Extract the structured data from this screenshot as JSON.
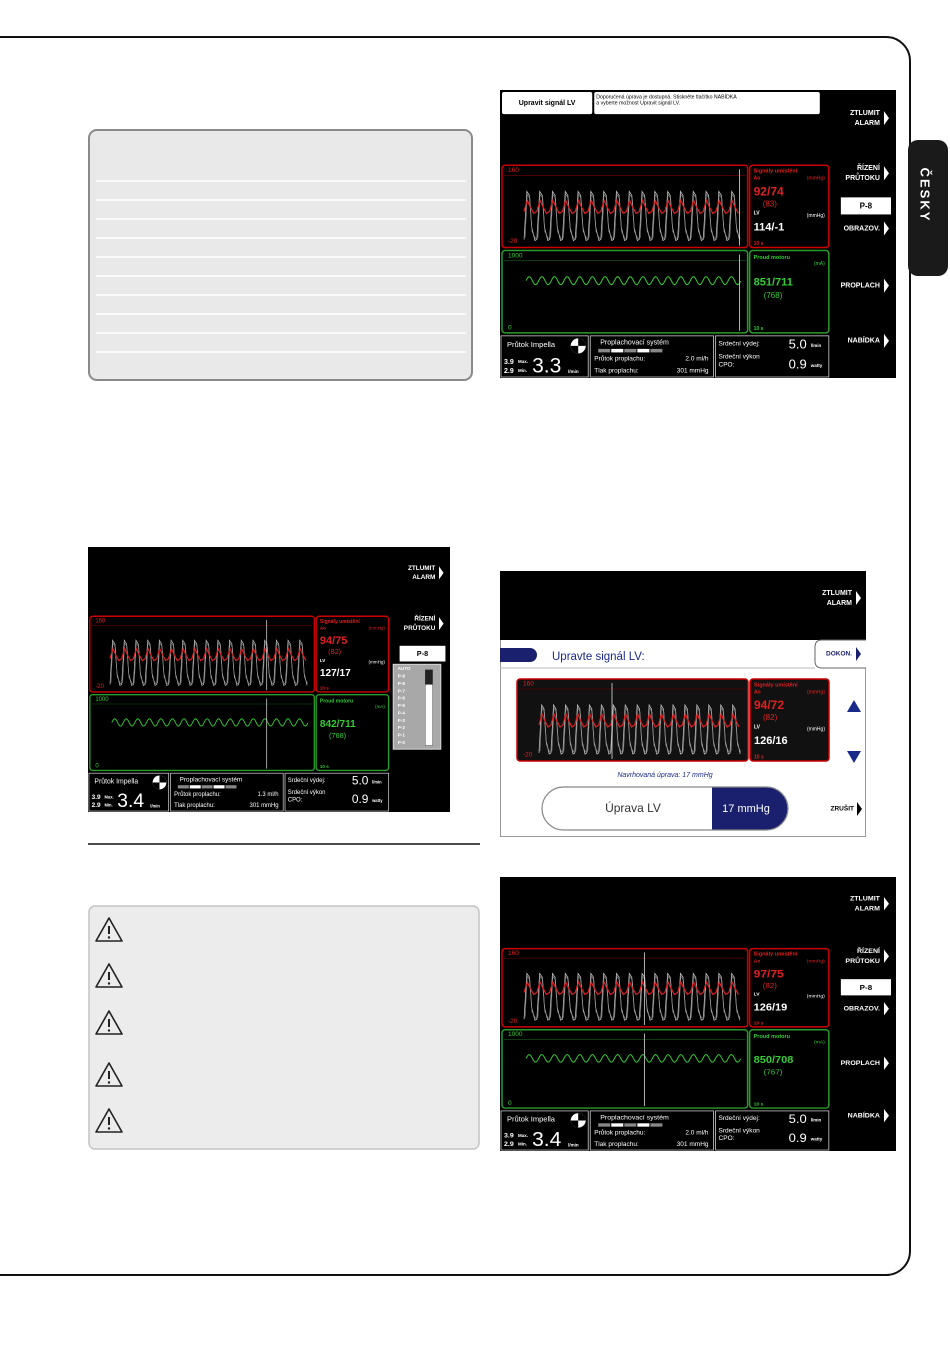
{
  "side_tab": "ČESKY",
  "screens": [
    {
      "message_tab": "Upravit signál LV",
      "message": [
        "Doporučená úprava je dostupná. Stiskněte tlačítko NABÍDKA",
        "a vyberte možnost Upravit signál LV."
      ],
      "buttons": [
        [
          "ZTLUMIT",
          "ALARM"
        ],
        [
          "ŘÍZENÍ",
          "PRŮTOKU"
        ],
        [
          "OBRAZOV."
        ],
        [
          "PROPLACH"
        ],
        [
          "NABÍDKA"
        ]
      ],
      "pump_level": "P-8",
      "pressure": {
        "y_top": "160",
        "y_bottom": "-20",
        "title": "Signály umístění",
        "ao_label": "Ao",
        "ao_unit": "(mmHg)",
        "ao_value": "92/74",
        "ao_mean": "(83)",
        "lv_label": "LV",
        "lv_unit": "(mmHg)",
        "lv_value": "114/-1",
        "time": "10 s"
      },
      "motor": {
        "y_top": "1000",
        "y_bottom": "0",
        "title": "Proud motoru",
        "unit": "(mA)",
        "value": "851/711",
        "mean": "(768)",
        "time": "10 s"
      },
      "flow": {
        "title": "Průtok Impella",
        "max": "3.9",
        "max_label": "Max.",
        "min": "2.9",
        "min_label": "Min.",
        "value": "3.3",
        "unit": "l/min"
      },
      "purge": {
        "title": "Proplachovací systém",
        "flow_label": "Průtok proplachu:",
        "flow_value": "2.0 ml/h",
        "pressure_label": "Tlak proplachu:",
        "pressure_value": "301 mmHg"
      },
      "output": {
        "co_label": "Srdeční výdej:",
        "co_value": "5.0",
        "co_unit": "l/min",
        "cpo_label": [
          "Srdeční výkon",
          "CPO:"
        ],
        "cpo_value": "0.9",
        "cpo_unit": "watty"
      }
    },
    {
      "buttons": [
        [
          "ZTLUMIT",
          "ALARM"
        ],
        [
          "ŘÍZENÍ",
          "PRŮTOKU"
        ]
      ],
      "pump_level": "P-8",
      "levels": [
        "AUTO",
        "P-9",
        "P-8",
        "P-7",
        "P-6",
        "P-5",
        "P-4",
        "P-3",
        "P-2",
        "P-1",
        "P-0"
      ],
      "pressure": {
        "y_top": "160",
        "y_bottom": "-20",
        "title": "Signály umístění",
        "ao_label": "Ao",
        "ao_unit": "(mmHg)",
        "ao_value": "94/75",
        "ao_mean": "(82)",
        "lv_label": "LV",
        "lv_unit": "(mmHg)",
        "lv_value": "127/17",
        "time": "10 s"
      },
      "motor": {
        "y_top": "1000",
        "y_bottom": "0",
        "title": "Proud motoru",
        "unit": "(mA)",
        "value": "842/711",
        "mean": "(768)",
        "time": "10 s"
      },
      "flow": {
        "title": "Průtok Impella",
        "max": "3.9",
        "max_label": "Max.",
        "min": "2.9",
        "min_label": "Min.",
        "value": "3.4",
        "unit": "l/min"
      },
      "purge": {
        "title": "Proplachovací systém",
        "flow_label": "Průtok proplachu:",
        "flow_value": "1.3 ml/h",
        "pressure_label": "Tlak proplachu:",
        "pressure_value": "301 mmHg"
      },
      "output": {
        "co_label": "Srdeční výdej:",
        "co_value": "5.0",
        "co_unit": "l/min",
        "cpo_label": [
          "Srdeční výkon",
          "CPO:"
        ],
        "cpo_value": "0.9",
        "cpo_unit": "watty"
      }
    },
    {
      "buttons": [
        [
          "ZTLUMIT",
          "ALARM"
        ],
        [
          "ŘÍZENÍ",
          "PRŮTOKU"
        ],
        [
          "OBRAZOV."
        ],
        [
          "PROPLACH"
        ],
        [
          "NABÍDKA"
        ]
      ],
      "pump_level": "P-8",
      "pressure": {
        "y_top": "160",
        "y_bottom": "-20",
        "title": "Signály umístění",
        "ao_label": "Ao",
        "ao_unit": "(mmHg)",
        "ao_value": "97/75",
        "ao_mean": "(82)",
        "lv_label": "LV",
        "lv_unit": "(mmHg)",
        "lv_value": "126/19",
        "time": "10 s"
      },
      "motor": {
        "y_top": "1000",
        "y_bottom": "0",
        "title": "Proud motoru",
        "unit": "(mA)",
        "value": "850/708",
        "mean": "(767)",
        "time": "10 s"
      },
      "flow": {
        "title": "Průtok Impella",
        "max": "3.9",
        "max_label": "Max.",
        "min": "2.9",
        "min_label": "Min.",
        "value": "3.4",
        "unit": "l/min"
      },
      "purge": {
        "title": "Proplachovací systém",
        "flow_label": "Průtok proplachu:",
        "flow_value": "2.0 ml/h",
        "pressure_label": "Tlak proplachu:",
        "pressure_value": "301 mmHg"
      },
      "output": {
        "co_label": "Srdeční výdej:",
        "co_value": "5.0",
        "co_unit": "l/min",
        "cpo_label": [
          "Srdeční výkon",
          "CPO:"
        ],
        "cpo_value": "0.9",
        "cpo_unit": "watty"
      }
    }
  ],
  "adjust_screen": {
    "buttons": [
      [
        "ZTLUMIT",
        "ALARM"
      ]
    ],
    "header": "Upravte signál LV:",
    "done": "DOKON.",
    "pressure": {
      "y_top": "160",
      "y_bottom": "-20",
      "title": "Signály umístění",
      "ao_label": "Ao",
      "ao_unit": "(mmHg)",
      "ao_value": "94/72",
      "ao_mean": "(82)",
      "lv_label": "LV",
      "lv_unit": "(mmHg)",
      "lv_value": "126/16",
      "time": "10 s"
    },
    "suggestion": "Navrhovaná úprava: 17 mmHg",
    "adjust_label": "Úprava LV",
    "adjust_value": "17 mmHg",
    "cancel": "ZRUŠIT"
  }
}
